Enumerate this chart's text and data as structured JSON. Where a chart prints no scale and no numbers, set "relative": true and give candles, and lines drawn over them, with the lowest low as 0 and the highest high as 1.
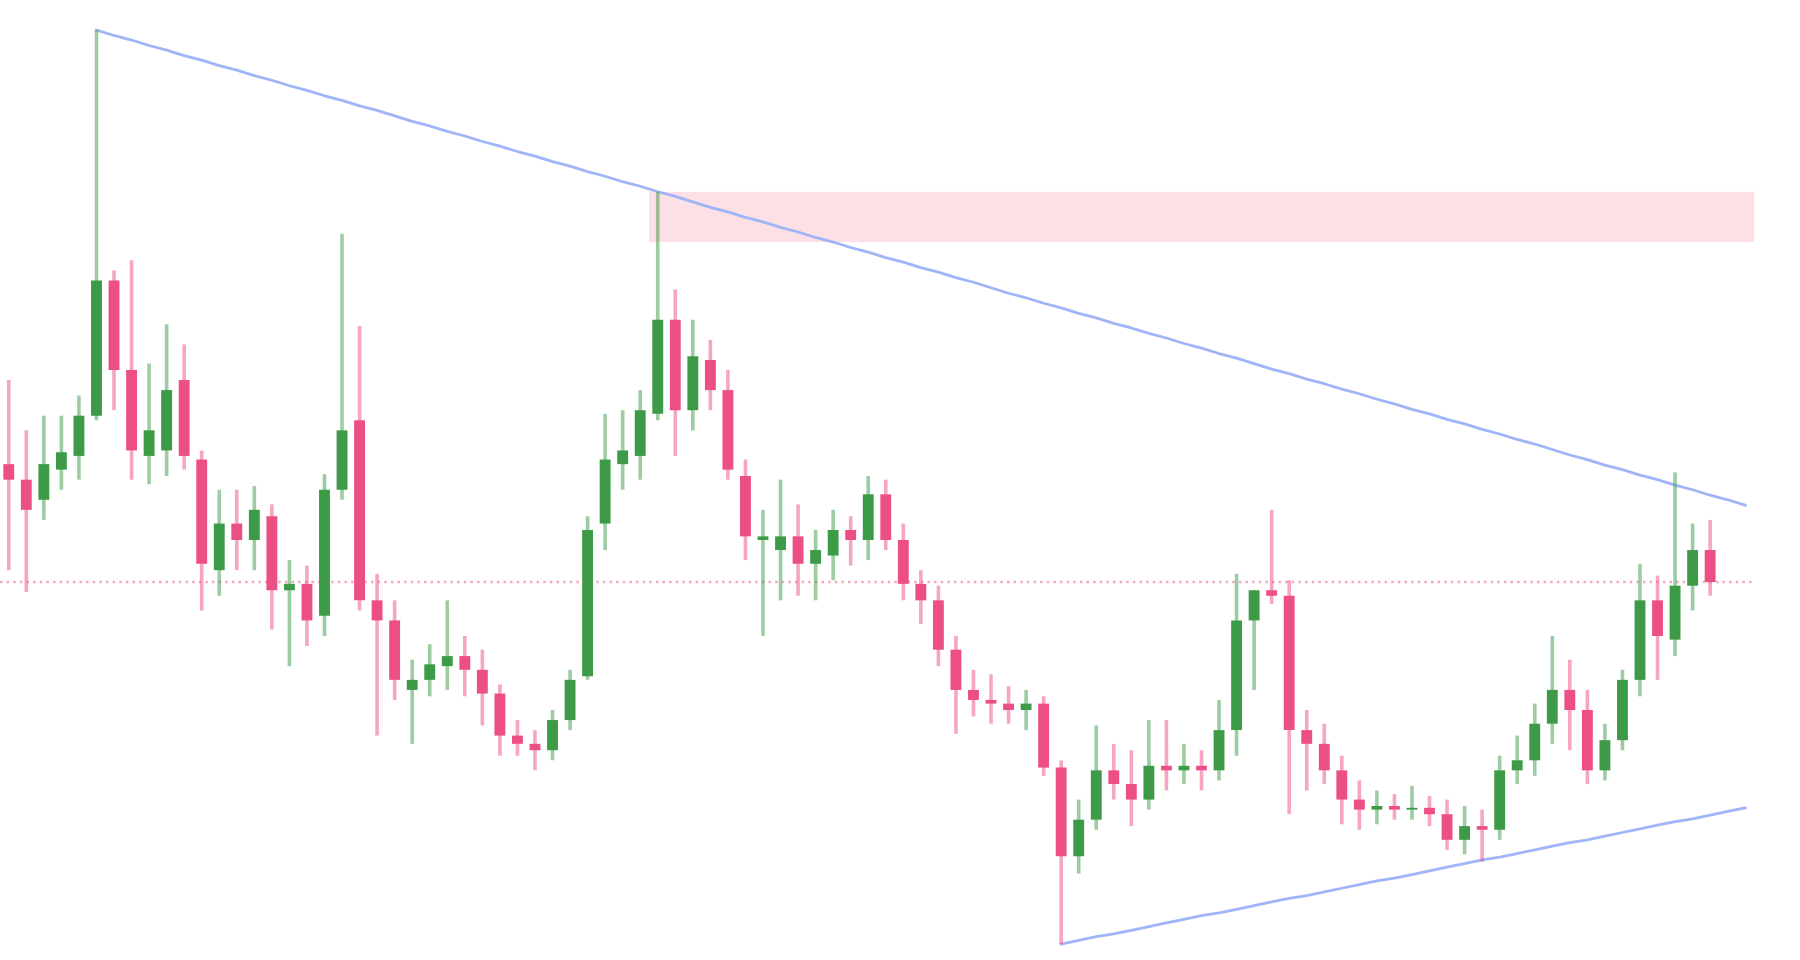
{
  "chart_data": {
    "type": "candlestick",
    "relative": true,
    "categories": [
      null,
      null,
      null,
      null,
      null,
      null,
      null,
      null,
      null,
      null,
      null,
      null,
      null,
      null,
      null,
      null,
      null,
      null,
      null,
      null,
      null,
      null,
      null,
      null,
      null,
      null,
      null,
      null,
      null,
      null,
      null,
      null,
      null,
      null,
      null,
      null,
      null,
      null,
      null,
      null,
      null,
      null,
      null,
      null,
      null,
      null,
      null,
      null,
      null,
      null,
      null,
      null,
      null,
      null,
      null,
      null,
      null,
      null,
      null,
      null,
      null,
      null,
      null,
      null,
      null,
      null,
      null,
      null,
      null,
      null,
      null,
      null,
      null,
      null,
      null,
      null,
      null,
      null,
      null,
      null,
      null,
      null,
      null,
      null,
      null,
      null,
      null,
      null,
      null,
      null,
      null,
      null,
      null,
      null,
      null,
      null,
      null,
      null,
      null,
      null
    ],
    "ohlc": [
      [
        0.525,
        0.617,
        0.409,
        0.508
      ],
      [
        0.508,
        0.562,
        0.385,
        0.475
      ],
      [
        0.486,
        0.578,
        0.464,
        0.525
      ],
      [
        0.519,
        0.578,
        0.497,
        0.538
      ],
      [
        0.534,
        0.6,
        0.508,
        0.578
      ],
      [
        0.578,
        1.0,
        0.573,
        0.726
      ],
      [
        0.726,
        0.737,
        0.584,
        0.628
      ],
      [
        0.628,
        0.748,
        0.508,
        0.54
      ],
      [
        0.534,
        0.635,
        0.503,
        0.562
      ],
      [
        0.54,
        0.678,
        0.512,
        0.606
      ],
      [
        0.617,
        0.656,
        0.519,
        0.534
      ],
      [
        0.53,
        0.54,
        0.365,
        0.416
      ],
      [
        0.409,
        0.497,
        0.381,
        0.46
      ],
      [
        0.46,
        0.497,
        0.409,
        0.442
      ],
      [
        0.442,
        0.501,
        0.409,
        0.475
      ],
      [
        0.468,
        0.481,
        0.344,
        0.387
      ],
      [
        0.387,
        0.42,
        0.304,
        0.394
      ],
      [
        0.394,
        0.414,
        0.326,
        0.354
      ],
      [
        0.359,
        0.514,
        0.337,
        0.497
      ],
      [
        0.497,
        0.777,
        0.486,
        0.562
      ],
      [
        0.573,
        0.676,
        0.365,
        0.376
      ],
      [
        0.376,
        0.405,
        0.228,
        0.354
      ],
      [
        0.354,
        0.376,
        0.267,
        0.289
      ],
      [
        0.278,
        0.311,
        0.219,
        0.289
      ],
      [
        0.289,
        0.328,
        0.271,
        0.306
      ],
      [
        0.304,
        0.376,
        0.278,
        0.315
      ],
      [
        0.315,
        0.337,
        0.271,
        0.3
      ],
      [
        0.3,
        0.322,
        0.239,
        0.274
      ],
      [
        0.274,
        0.284,
        0.206,
        0.228
      ],
      [
        0.228,
        0.245,
        0.206,
        0.219
      ],
      [
        0.219,
        0.234,
        0.19,
        0.212
      ],
      [
        0.212,
        0.256,
        0.201,
        0.245
      ],
      [
        0.245,
        0.3,
        0.234,
        0.289
      ],
      [
        0.293,
        0.468,
        0.289,
        0.453
      ],
      [
        0.46,
        0.58,
        0.431,
        0.53
      ],
      [
        0.525,
        0.584,
        0.497,
        0.54
      ],
      [
        0.534,
        0.606,
        0.508,
        0.584
      ],
      [
        0.58,
        0.823,
        0.573,
        0.683
      ],
      [
        0.683,
        0.716,
        0.534,
        0.584
      ],
      [
        0.584,
        0.683,
        0.562,
        0.643
      ],
      [
        0.639,
        0.661,
        0.584,
        0.606
      ],
      [
        0.606,
        0.628,
        0.508,
        0.519
      ],
      [
        0.512,
        0.53,
        0.42,
        0.446
      ],
      [
        0.442,
        0.475,
        0.337,
        0.446
      ],
      [
        0.431,
        0.508,
        0.376,
        0.446
      ],
      [
        0.446,
        0.481,
        0.381,
        0.416
      ],
      [
        0.416,
        0.453,
        0.376,
        0.431
      ],
      [
        0.425,
        0.475,
        0.398,
        0.453
      ],
      [
        0.453,
        0.468,
        0.414,
        0.442
      ],
      [
        0.442,
        0.512,
        0.42,
        0.492
      ],
      [
        0.492,
        0.508,
        0.431,
        0.442
      ],
      [
        0.442,
        0.46,
        0.376,
        0.394
      ],
      [
        0.394,
        0.409,
        0.35,
        0.376
      ],
      [
        0.376,
        0.392,
        0.304,
        0.322
      ],
      [
        0.322,
        0.337,
        0.23,
        0.278
      ],
      [
        0.278,
        0.3,
        0.249,
        0.267
      ],
      [
        0.267,
        0.295,
        0.241,
        0.263
      ],
      [
        0.263,
        0.282,
        0.241,
        0.256
      ],
      [
        0.256,
        0.278,
        0.234,
        0.263
      ],
      [
        0.263,
        0.271,
        0.184,
        0.193
      ],
      [
        0.193,
        0.201,
        0.0,
        0.096
      ],
      [
        0.096,
        0.158,
        0.077,
        0.136
      ],
      [
        0.136,
        0.239,
        0.125,
        0.19
      ],
      [
        0.19,
        0.219,
        0.158,
        0.175
      ],
      [
        0.175,
        0.212,
        0.129,
        0.158
      ],
      [
        0.158,
        0.245,
        0.147,
        0.195
      ],
      [
        0.195,
        0.245,
        0.168,
        0.19
      ],
      [
        0.19,
        0.219,
        0.175,
        0.195
      ],
      [
        0.195,
        0.212,
        0.168,
        0.19
      ],
      [
        0.19,
        0.267,
        0.179,
        0.234
      ],
      [
        0.234,
        0.405,
        0.206,
        0.354
      ],
      [
        0.354,
        0.387,
        0.278,
        0.387
      ],
      [
        0.387,
        0.475,
        0.372,
        0.381
      ],
      [
        0.381,
        0.398,
        0.142,
        0.234
      ],
      [
        0.234,
        0.256,
        0.168,
        0.219
      ],
      [
        0.219,
        0.241,
        0.175,
        0.19
      ],
      [
        0.19,
        0.206,
        0.131,
        0.158
      ],
      [
        0.158,
        0.179,
        0.125,
        0.147
      ],
      [
        0.147,
        0.168,
        0.131,
        0.151
      ],
      [
        0.151,
        0.164,
        0.136,
        0.147
      ],
      [
        0.147,
        0.173,
        0.136,
        0.149
      ],
      [
        0.149,
        0.162,
        0.129,
        0.142
      ],
      [
        0.142,
        0.158,
        0.103,
        0.114
      ],
      [
        0.114,
        0.151,
        0.098,
        0.129
      ],
      [
        0.129,
        0.147,
        0.09,
        0.125
      ],
      [
        0.125,
        0.206,
        0.114,
        0.19
      ],
      [
        0.19,
        0.228,
        0.175,
        0.201
      ],
      [
        0.201,
        0.263,
        0.184,
        0.241
      ],
      [
        0.241,
        0.337,
        0.219,
        0.278
      ],
      [
        0.278,
        0.311,
        0.212,
        0.256
      ],
      [
        0.256,
        0.278,
        0.175,
        0.19
      ],
      [
        0.19,
        0.241,
        0.179,
        0.223
      ],
      [
        0.223,
        0.3,
        0.212,
        0.289
      ],
      [
        0.289,
        0.416,
        0.271,
        0.376
      ],
      [
        0.376,
        0.403,
        0.289,
        0.337
      ],
      [
        0.333,
        0.516,
        0.315,
        0.392
      ],
      [
        0.392,
        0.46,
        0.365,
        0.431
      ],
      [
        0.431,
        0.464,
        0.381,
        0.396
      ],
      null,
      null
    ],
    "colors": [
      "#ec4f83",
      "#ec4f83",
      "#3d9a46",
      "#3d9a46",
      "#3d9a46",
      "#3d9a46",
      "#ec4f83",
      "#ec4f83",
      "#3d9a46",
      "#3d9a46",
      "#ec4f83",
      "#ec4f83",
      "#3d9a46",
      "#ec4f83",
      "#3d9a46",
      "#ec4f83",
      "#3d9a46",
      "#ec4f83",
      "#3d9a46",
      "#3d9a46",
      "#ec4f83",
      "#ec4f83",
      "#ec4f83",
      "#3d9a46",
      "#3d9a46",
      "#3d9a46",
      "#ec4f83",
      "#ec4f83",
      "#ec4f83",
      "#ec4f83",
      "#ec4f83",
      "#3d9a46",
      "#3d9a46",
      "#3d9a46",
      "#3d9a46",
      "#3d9a46",
      "#3d9a46",
      "#3d9a46",
      "#ec4f83",
      "#3d9a46",
      "#ec4f83",
      "#ec4f83",
      "#ec4f83",
      "#3d9a46",
      "#3d9a46",
      "#ec4f83",
      "#3d9a46",
      "#3d9a46",
      "#ec4f83",
      "#3d9a46",
      "#ec4f83",
      "#ec4f83",
      "#ec4f83",
      "#ec4f83",
      "#ec4f83",
      "#ec4f83",
      "#ec4f83",
      "#ec4f83",
      "#3d9a46",
      "#ec4f83",
      "#ec4f83",
      "#3d9a46",
      "#3d9a46",
      "#ec4f83",
      "#ec4f83",
      "#3d9a46",
      "#ec4f83",
      "#3d9a46",
      "#ec4f83",
      "#3d9a46",
      "#3d9a46",
      "#3d9a46",
      "#ec4f83",
      "#ec4f83",
      "#ec4f83",
      "#ec4f83",
      "#ec4f83",
      "#ec4f83",
      "#3d9a46",
      "#ec4f83",
      "#3d9a46",
      "#ec4f83",
      "#ec4f83",
      "#3d9a46",
      "#ec4f83",
      "#3d9a46",
      "#3d9a46",
      "#3d9a46",
      "#3d9a46",
      "#ec4f83",
      "#ec4f83",
      "#3d9a46",
      "#3d9a46",
      "#3d9a46",
      "#ec4f83",
      "#3d9a46",
      "#3d9a46",
      "#ec4f83",
      null,
      null
    ],
    "series": [
      {
        "type": "line",
        "color": "#9fb5f7",
        "values": [
          null,
          null,
          null,
          null,
          null,
          1.0,
          0.994,
          0.989,
          0.983,
          0.978,
          0.972,
          0.967,
          0.961,
          0.956,
          0.95,
          0.945,
          0.939,
          0.934,
          0.928,
          0.923,
          0.917,
          0.912,
          0.906,
          0.9,
          0.895,
          0.889,
          0.884,
          0.878,
          0.873,
          0.867,
          0.862,
          0.856,
          0.851,
          0.845,
          0.84,
          0.834,
          0.829,
          0.823,
          0.818,
          0.812,
          0.806,
          0.801,
          0.795,
          0.79,
          0.784,
          0.779,
          0.773,
          0.768,
          0.762,
          0.757,
          0.751,
          0.746,
          0.74,
          0.735,
          0.729,
          0.724,
          0.718,
          0.712,
          0.707,
          0.701,
          0.696,
          0.69,
          0.685,
          0.679,
          0.674,
          0.668,
          0.663,
          0.657,
          0.652,
          0.646,
          0.641,
          0.635,
          0.629,
          0.624,
          0.618,
          0.613,
          0.607,
          0.602,
          0.596,
          0.591,
          0.585,
          0.58,
          0.574,
          0.569,
          0.563,
          0.558,
          0.552,
          0.547,
          0.541,
          0.535,
          0.53,
          0.524,
          0.519,
          0.513,
          0.508,
          0.502,
          0.497,
          0.491,
          0.486,
          0.48
        ]
      },
      {
        "type": "line",
        "color": "#9fb5f7",
        "values": [
          null,
          null,
          null,
          null,
          null,
          null,
          null,
          null,
          null,
          null,
          null,
          null,
          null,
          null,
          null,
          null,
          null,
          null,
          null,
          null,
          null,
          null,
          null,
          null,
          null,
          null,
          null,
          null,
          null,
          null,
          null,
          null,
          null,
          null,
          null,
          null,
          null,
          null,
          null,
          null,
          null,
          null,
          null,
          null,
          null,
          null,
          null,
          null,
          null,
          null,
          null,
          null,
          null,
          null,
          null,
          null,
          null,
          null,
          null,
          null,
          0.0,
          0.004,
          0.008,
          0.011,
          0.015,
          0.019,
          0.023,
          0.027,
          0.031,
          0.034,
          0.038,
          0.042,
          0.046,
          0.05,
          0.053,
          0.057,
          0.061,
          0.065,
          0.069,
          0.072,
          0.076,
          0.08,
          0.084,
          0.088,
          0.092,
          0.095,
          0.099,
          0.103,
          0.107,
          0.111,
          0.114,
          0.118,
          0.122,
          0.126,
          0.13,
          0.134,
          0.137,
          0.141,
          0.145,
          0.149
        ]
      }
    ],
    "bands": [
      {
        "axis": "y",
        "from": 0.768,
        "to": 0.823,
        "color": "#fde0e5"
      }
    ],
    "ref_lines": [
      {
        "axis": "y",
        "value": 0.396,
        "color": "#f4a9bc",
        "line_style": "dotted"
      }
    ]
  }
}
